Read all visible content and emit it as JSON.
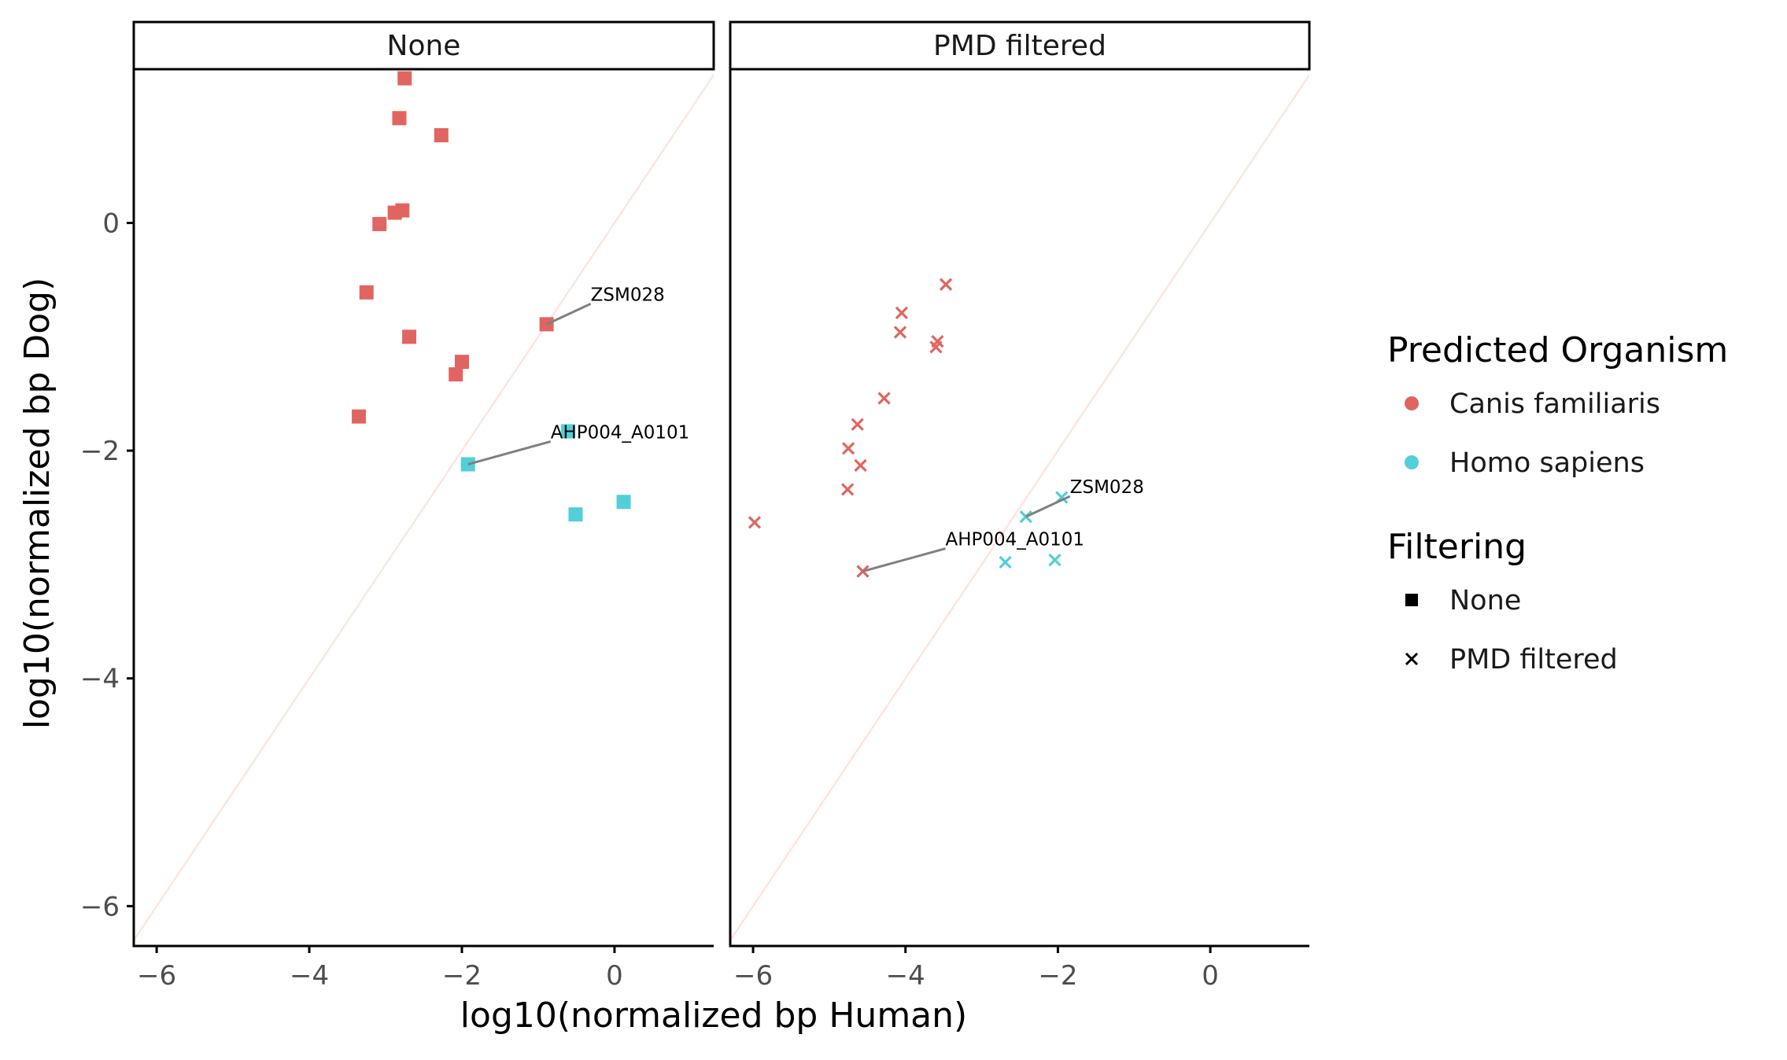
{
  "chart_data": {
    "type": "scatter",
    "xlabel": "log10(normalized bp Human)",
    "ylabel": "log10(normalized bp Dog)",
    "xlim": [
      -6.3,
      1.3
    ],
    "ylim": [
      -6.35,
      1.35
    ],
    "xticks": [
      -6,
      -4,
      -2,
      0
    ],
    "yticks": [
      -6,
      -4,
      -2,
      0
    ],
    "xtick_labels": [
      "−6",
      "−4",
      "−2",
      "0"
    ],
    "ytick_labels": [
      "−6",
      "−4",
      "−2",
      "0"
    ],
    "reference_line": {
      "slope": 1,
      "intercept": 0,
      "color": "#ffe4e1"
    },
    "grid": false,
    "colors": {
      "Canis familiaris": "#e06560",
      "Homo sapiens": "#52cfd8"
    },
    "panels": [
      {
        "title": "None",
        "points": [
          {
            "x": -2.75,
            "y": 1.27,
            "organism": "Canis familiaris"
          },
          {
            "x": -2.82,
            "y": 0.92,
            "organism": "Canis familiaris"
          },
          {
            "x": -2.27,
            "y": 0.77,
            "organism": "Canis familiaris"
          },
          {
            "x": -2.78,
            "y": 0.11,
            "organism": "Canis familiaris"
          },
          {
            "x": -2.88,
            "y": 0.09,
            "organism": "Canis familiaris"
          },
          {
            "x": -3.08,
            "y": -0.01,
            "organism": "Canis familiaris"
          },
          {
            "x": -3.25,
            "y": -0.61,
            "organism": "Canis familiaris"
          },
          {
            "x": -0.89,
            "y": -0.89,
            "organism": "Canis familiaris"
          },
          {
            "x": -2.69,
            "y": -1.0,
            "organism": "Canis familiaris"
          },
          {
            "x": -2.0,
            "y": -1.22,
            "organism": "Canis familiaris"
          },
          {
            "x": -2.08,
            "y": -1.33,
            "organism": "Canis familiaris"
          },
          {
            "x": -3.35,
            "y": -1.7,
            "organism": "Canis familiaris"
          },
          {
            "x": -0.61,
            "y": -1.83,
            "organism": "Homo sapiens"
          },
          {
            "x": -1.92,
            "y": -2.12,
            "organism": "Homo sapiens"
          },
          {
            "x": 0.12,
            "y": -2.45,
            "organism": "Homo sapiens"
          },
          {
            "x": -0.51,
            "y": -2.56,
            "organism": "Homo sapiens"
          }
        ],
        "annotations": [
          {
            "label": "ZSM028",
            "x": -0.89,
            "y": -0.89
          },
          {
            "label": "AHP004_A0101",
            "x": -1.92,
            "y": -2.12
          }
        ]
      },
      {
        "title": "PMD filtered",
        "points": [
          {
            "x": -3.47,
            "y": -0.54,
            "organism": "Canis familiaris"
          },
          {
            "x": -4.05,
            "y": -0.79,
            "organism": "Canis familiaris"
          },
          {
            "x": -4.07,
            "y": -0.96,
            "organism": "Canis familiaris"
          },
          {
            "x": -3.58,
            "y": -1.04,
            "organism": "Canis familiaris"
          },
          {
            "x": -3.6,
            "y": -1.09,
            "organism": "Canis familiaris"
          },
          {
            "x": -4.28,
            "y": -1.54,
            "organism": "Canis familiaris"
          },
          {
            "x": -4.63,
            "y": -1.77,
            "organism": "Canis familiaris"
          },
          {
            "x": -4.75,
            "y": -1.98,
            "organism": "Canis familiaris"
          },
          {
            "x": -4.59,
            "y": -2.13,
            "organism": "Canis familiaris"
          },
          {
            "x": -4.76,
            "y": -2.34,
            "organism": "Canis familiaris"
          },
          {
            "x": -5.98,
            "y": -2.63,
            "organism": "Canis familiaris"
          },
          {
            "x": -4.56,
            "y": -3.06,
            "organism": "Canis familiaris"
          },
          {
            "x": -1.95,
            "y": -2.41,
            "organism": "Homo sapiens"
          },
          {
            "x": -2.42,
            "y": -2.58,
            "organism": "Homo sapiens"
          },
          {
            "x": -2.04,
            "y": -2.96,
            "organism": "Homo sapiens"
          },
          {
            "x": -2.69,
            "y": -2.98,
            "organism": "Homo sapiens"
          }
        ],
        "annotations": [
          {
            "label": "ZSM028",
            "x": -2.42,
            "y": -2.58
          },
          {
            "label": "AHP004_A0101",
            "x": -4.56,
            "y": -3.06
          }
        ]
      }
    ],
    "legend": {
      "placement": "right",
      "groups": [
        {
          "title": "Predicted Organism",
          "kind": "color",
          "entries": [
            "Canis familiaris",
            "Homo sapiens"
          ]
        },
        {
          "title": "Filtering",
          "kind": "shape",
          "entries": [
            "None",
            "PMD filtered"
          ]
        }
      ]
    }
  }
}
